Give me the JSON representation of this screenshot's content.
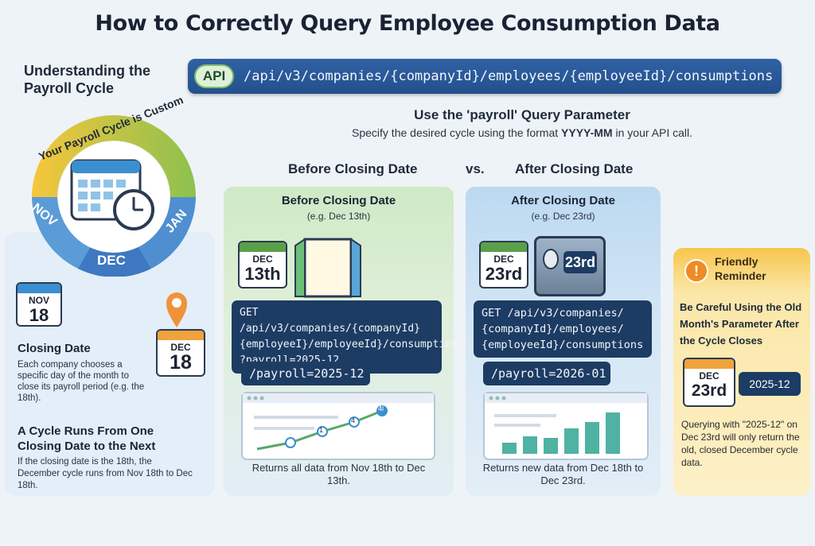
{
  "title": "How to Correctly Query Employee Consumption Data",
  "left": {
    "heading": "Understanding the Payroll Cycle",
    "ring_text": "Your Payroll Cycle is Custom",
    "months": {
      "nov": "NOV",
      "dec": "DEC",
      "jan": "JAN"
    },
    "cal1": {
      "month": "NOV",
      "day": "18"
    },
    "cal2": {
      "month": "DEC",
      "day": "18"
    },
    "closing_heading": "Closing Date",
    "closing_text": "Each company chooses a specific day of the month to close its payroll period (e.g. the 18th).",
    "cycle_heading": "A Cycle Runs From One Closing Date to the Next",
    "cycle_text": "If the closing date is the 18th, the December cycle runs from Nov 18th to Dec 18th."
  },
  "api": {
    "badge": "API",
    "path": "/api/v3/companies/{companyId}/employees/{employeeId}/consumptions"
  },
  "query_param": {
    "heading": "Use the 'payroll' Query Parameter",
    "desc_prefix": "Specify the desired cycle using the format ",
    "desc_format": "YYYY-MM",
    "desc_suffix": " in your API call."
  },
  "compare": {
    "before": "Before Closing Date",
    "vs": "vs.",
    "after": "After Closing Date"
  },
  "before_panel": {
    "title": "Before Closing Date",
    "subtitle": "(e.g. Dec 13th)",
    "cal": {
      "month": "DEC",
      "day": "13th"
    },
    "code": [
      "GET /api/v3/companies/{companyId}",
      "{employeeI}/employeeId}/consumptions",
      "?payroll=2025-12"
    ],
    "param": "/payroll=2025-12",
    "chart_labels": [
      "1",
      "4",
      "4l"
    ],
    "caption": "Returns all data from Nov 18th to Dec 13th."
  },
  "after_panel": {
    "title": "After Closing Date",
    "subtitle": "(e.g. Dec 23rd)",
    "cal": {
      "month": "DEC",
      "day": "23rd"
    },
    "safe_label": "23rd",
    "code": [
      "GET /api/v3/companies/",
      "{companyId}/employees/",
      "{employeeId}/consumptions"
    ],
    "param": "/payroll=2026-01",
    "caption": "Returns new data from Dec 18th to Dec 23rd."
  },
  "reminder": {
    "badge": "!",
    "title": "Friendly Reminder",
    "heading": "Be Careful Using the Old Month's Parameter After the Cycle Closes",
    "cal": {
      "month": "DEC",
      "day": "23rd"
    },
    "param": "2025-12",
    "text": "Querying with \"2025-12\" on Dec 23rd will only return the old, closed December cycle data."
  }
}
